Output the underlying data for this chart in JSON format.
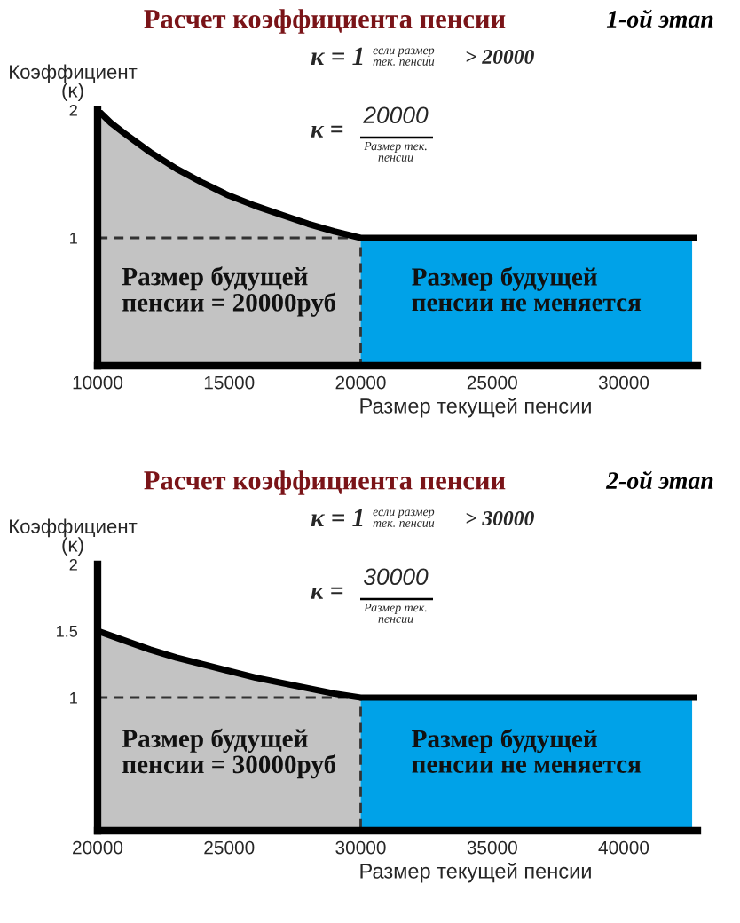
{
  "chart_data": [
    {
      "type": "line",
      "title": "Расчет коэффициента пенсии",
      "subtitle": "1-ой этап",
      "xlabel": "Размер текущей пенсии",
      "ylabel": "Коэффициент\n(κ)",
      "annotations": [
        "κ = 1",
        "если размер\nтек. пенсии",
        "> 20000",
        "κ =",
        "20000",
        "Размер тек.\nпенсии"
      ],
      "xlim": [
        10000,
        32800
      ],
      "xticks": [
        10000,
        15000,
        20000,
        25000,
        30000
      ],
      "ylim": [
        0,
        2
      ],
      "yticks": [
        1,
        2
      ],
      "series": [
        {
          "type": "area",
          "name": "Размер будущей\nпенсии = 20000руб",
          "color": "#c3c3c3",
          "x": [
            10000,
            10500,
            11000,
            12000,
            13000,
            14000,
            15000,
            16000,
            17000,
            18000,
            19000,
            20000
          ],
          "values": [
            2,
            1.9,
            1.82,
            1.67,
            1.54,
            1.43,
            1.33,
            1.25,
            1.18,
            1.11,
            1.05,
            1
          ]
        },
        {
          "type": "area",
          "name": "Размер будущей\nпенсии не меняется",
          "color": "#00a2e8",
          "x": [
            20000,
            32600
          ],
          "values": [
            1,
            1
          ]
        },
        {
          "color": "#333333",
          "line_style": "dashed",
          "x": [
            10000,
            20000,
            20000
          ],
          "values": [
            1,
            1,
            0
          ]
        },
        {
          "color": "#000000",
          "x": [
            10000,
            10500,
            11000,
            12000,
            13000,
            14000,
            15000,
            16000,
            17000,
            18000,
            19000,
            20000,
            32800
          ],
          "values": [
            2,
            1.9,
            1.82,
            1.67,
            1.54,
            1.43,
            1.33,
            1.25,
            1.18,
            1.11,
            1.05,
            1,
            1
          ]
        }
      ]
    },
    {
      "type": "line",
      "title": "Расчет коэффициента пенсии",
      "subtitle": "2-ой этап",
      "xlabel": "Размер текущей пенсии",
      "ylabel": "Коэффициент\n(κ)",
      "annotations": [
        "κ = 1",
        "если размер\nтек. пенсии",
        "> 30000",
        "κ =",
        "30000",
        "Размер тек.\nпенсии"
      ],
      "xlim": [
        20000,
        42800
      ],
      "xticks": [
        20000,
        25000,
        30000,
        35000,
        40000
      ],
      "ylim": [
        0,
        2
      ],
      "yticks": [
        1,
        1.5,
        2
      ],
      "series": [
        {
          "type": "area",
          "name": "Размер будущей\nпенсии = 30000руб",
          "color": "#c3c3c3",
          "x": [
            20000,
            21000,
            22000,
            23000,
            24000,
            25000,
            26000,
            27000,
            28000,
            29000,
            30000
          ],
          "values": [
            1.5,
            1.43,
            1.36,
            1.3,
            1.25,
            1.2,
            1.15,
            1.11,
            1.07,
            1.03,
            1
          ]
        },
        {
          "type": "area",
          "name": "Размер будущей\nпенсии не меняется",
          "color": "#00a2e8",
          "x": [
            30000,
            42600
          ],
          "values": [
            1,
            1
          ]
        },
        {
          "color": "#333333",
          "line_style": "dashed",
          "x": [
            20000,
            30000,
            30000
          ],
          "values": [
            1,
            1,
            0
          ]
        },
        {
          "color": "#000000",
          "x": [
            20000,
            21000,
            22000,
            23000,
            24000,
            25000,
            26000,
            27000,
            28000,
            29000,
            30000,
            42800
          ],
          "values": [
            1.5,
            1.43,
            1.36,
            1.3,
            1.25,
            1.2,
            1.15,
            1.11,
            1.07,
            1.03,
            1,
            1
          ]
        }
      ]
    }
  ]
}
